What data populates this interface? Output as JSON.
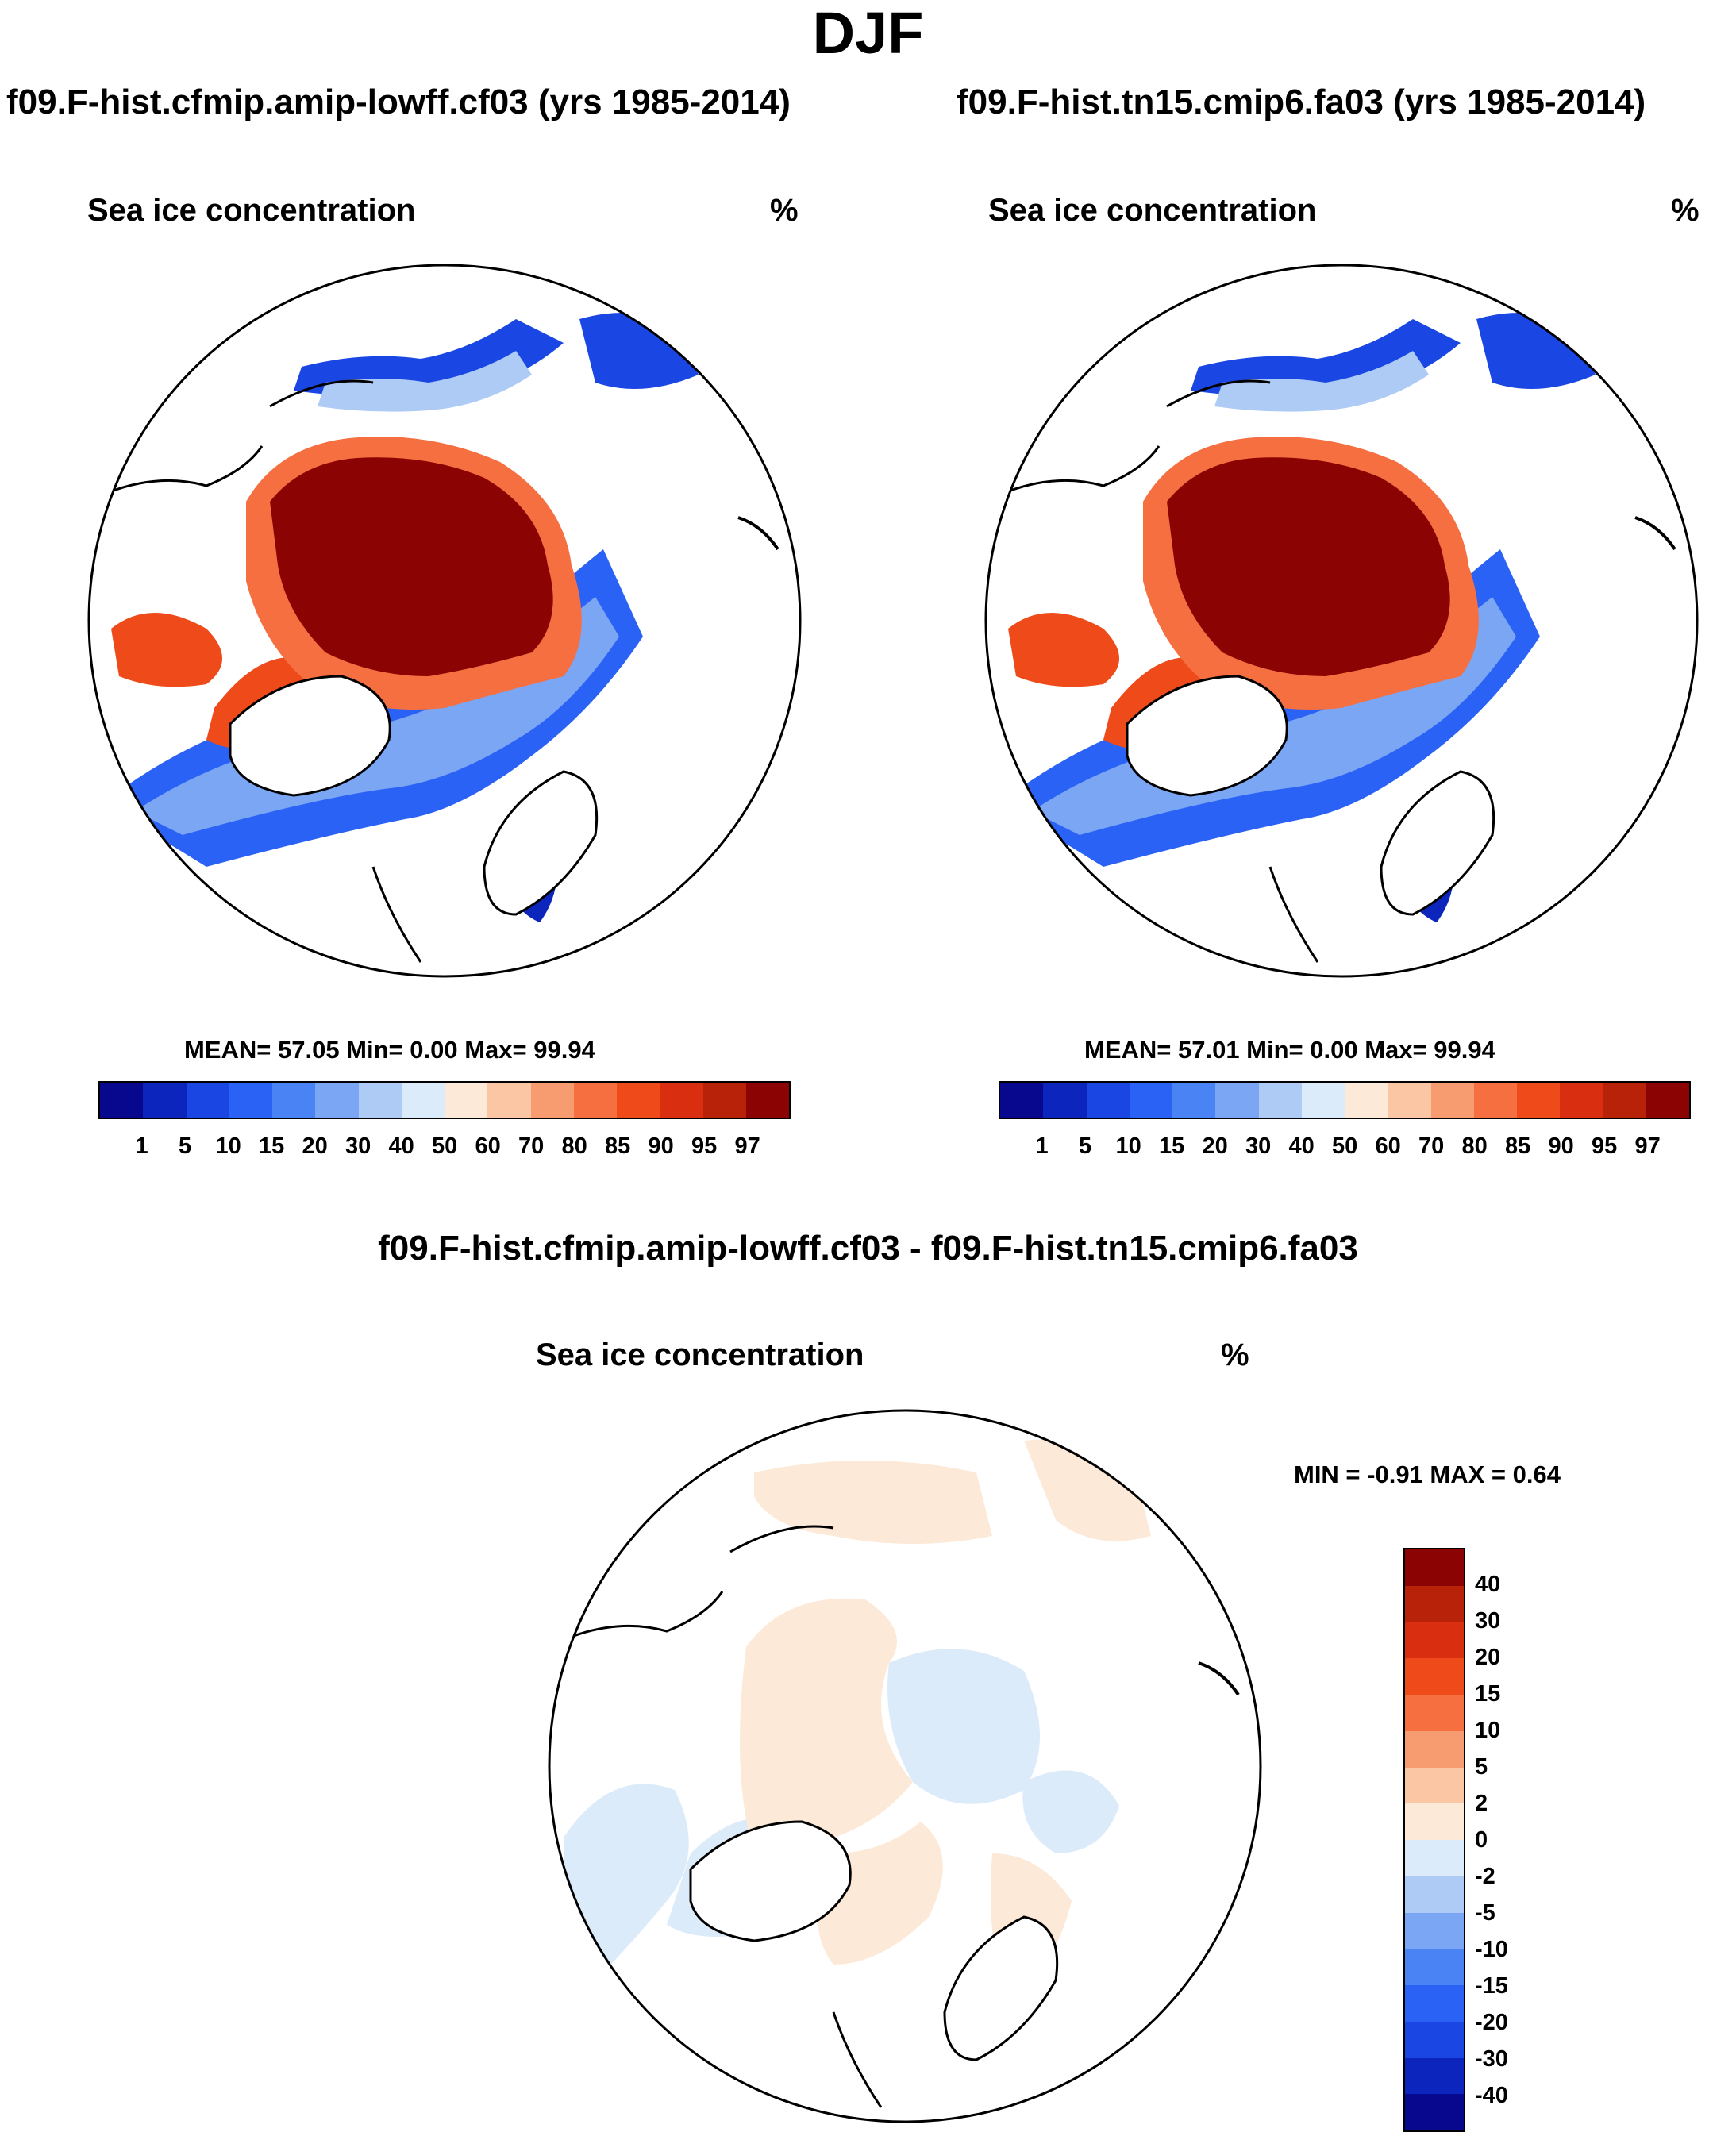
{
  "figure": {
    "title": "DJF",
    "colors": {
      "coast": "#000000",
      "ocean": "#ffffff"
    }
  },
  "panels": [
    {
      "case_title": "f09.F-hist.cfmip.amip-lowff.cf03 (yrs 1985-2014)",
      "variable": "Sea ice concentration",
      "units": "%",
      "stats_text": "MEAN=  57.05  Min=    0.00  Max=  99.94",
      "mean": 57.05,
      "min": 0.0,
      "max": 99.94
    },
    {
      "case_title": "f09.F-hist.tn15.cmip6.fa03 (yrs 1985-2014)",
      "variable": "Sea ice concentration",
      "units": "%",
      "stats_text": "MEAN=  57.01  Min=    0.00  Max=  99.94",
      "mean": 57.01,
      "min": 0.0,
      "max": 99.94
    },
    {
      "case_title": "f09.F-hist.cfmip.amip-lowff.cf03 - f09.F-hist.tn15.cmip6.fa03",
      "variable": "Sea ice concentration",
      "units": "%",
      "stats_text": "MIN =  -0.91 MAX =   0.64",
      "min": -0.91,
      "max": 0.64
    }
  ],
  "colorbar_abs": {
    "labels": [
      "1",
      "5",
      "10",
      "15",
      "20",
      "30",
      "40",
      "50",
      "60",
      "70",
      "80",
      "85",
      "90",
      "95",
      "97"
    ],
    "colors": [
      "#08088e",
      "#0c26bd",
      "#1a47e3",
      "#2b62f6",
      "#4a83f4",
      "#7aa6f3",
      "#aecbf5",
      "#dcebfa",
      "#fde9d7",
      "#fbc6a4",
      "#f79b70",
      "#f56f41",
      "#ef4a1a",
      "#d92f10",
      "#b82208",
      "#8b0303"
    ]
  },
  "colorbar_diff": {
    "labels": [
      "40",
      "30",
      "20",
      "15",
      "10",
      "5",
      "2",
      "0",
      "-2",
      "-5",
      "-10",
      "-15",
      "-20",
      "-30",
      "-40"
    ],
    "colors": [
      "#8b0303",
      "#b82208",
      "#d92f10",
      "#ef4a1a",
      "#f56f41",
      "#f79b70",
      "#fbc6a4",
      "#fde9d7",
      "#dcebfa",
      "#aecbf5",
      "#7aa6f3",
      "#4a83f4",
      "#2b62f6",
      "#1a47e3",
      "#0c26bd",
      "#08088e"
    ]
  }
}
